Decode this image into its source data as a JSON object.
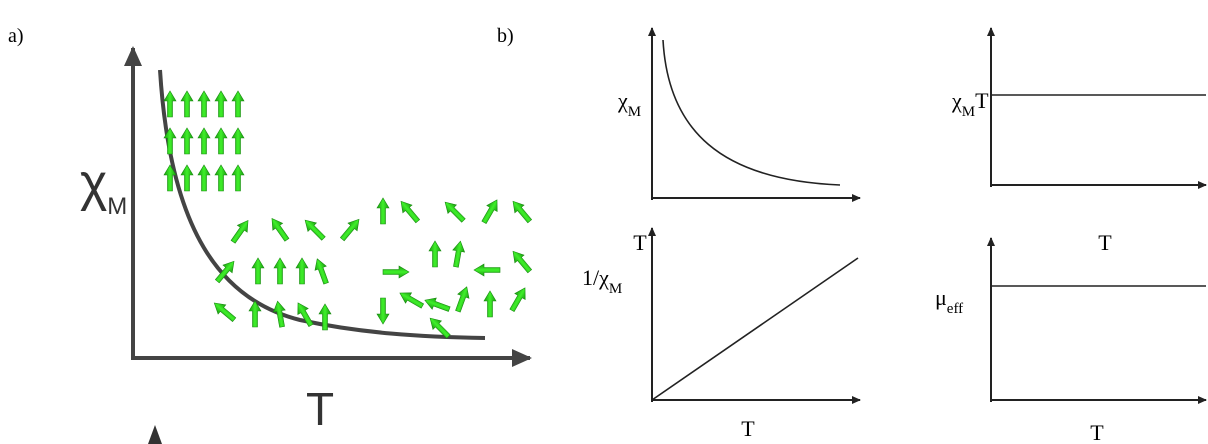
{
  "panel_a": {
    "label": "a)",
    "y_label": [
      {
        "text": "χ"
      },
      {
        "text": "M",
        "sub": true
      }
    ],
    "x_label": "T"
  },
  "panel_b": {
    "label": "b)",
    "plots": [
      {
        "y_label": [
          {
            "text": "χ"
          },
          {
            "text": "M",
            "sub": true
          }
        ],
        "x_label": "T"
      },
      {
        "y_label": [
          {
            "text": "χ"
          },
          {
            "text": "M",
            "sub": true
          },
          {
            "text": "T"
          }
        ],
        "x_label": "T"
      },
      {
        "y_label": [
          {
            "text": "1/χ"
          },
          {
            "text": "M",
            "sub": true
          }
        ],
        "x_label": "T"
      },
      {
        "y_label": [
          {
            "text": "μ"
          },
          {
            "text": "eff",
            "sub": true
          }
        ],
        "x_label": "T"
      }
    ]
  }
}
